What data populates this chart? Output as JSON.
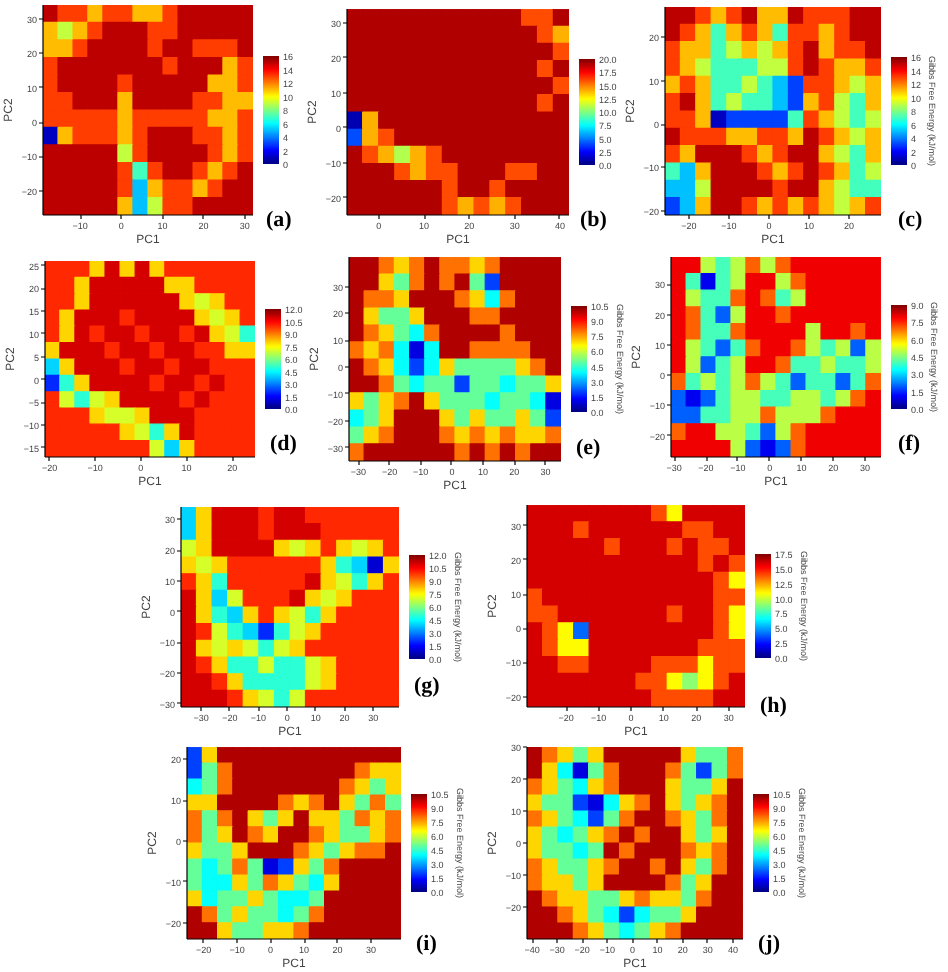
{
  "chart_data": [
    {
      "type": "heatmap",
      "xlabel": "PC1",
      "ylabel": "PC2",
      "annotations": [
        "(a)"
      ],
      "x": [
        -17.2,
        -13.5,
        -9.9,
        -6.3,
        -2.6,
        1.0,
        4.7,
        8.3,
        12.0,
        15.6,
        19.3,
        22.9,
        26.5,
        30.2
      ],
      "y": [
        31.5,
        26.4,
        21.3,
        16.2,
        11.1,
        6.0,
        1.0,
        -4.1,
        -9.2,
        -14.3,
        -19.4,
        -24.5
      ],
      "xlim": [
        -19,
        32
      ],
      "xticks": [
        -10,
        0,
        10,
        20,
        30
      ],
      "ylim": [
        -27,
        34
      ],
      "yticks": [
        -20,
        -10,
        0,
        10,
        20,
        30
      ],
      "clim": [
        0,
        16
      ],
      "cticks": [
        0,
        2,
        4,
        6,
        8,
        10,
        12,
        14,
        16
      ],
      "cells": [
        [
          15,
          13,
          13,
          11,
          13,
          13,
          11,
          11,
          13,
          15,
          15,
          15,
          15,
          15
        ],
        [
          11,
          9,
          11,
          13,
          15,
          15,
          15,
          13,
          13,
          15,
          15,
          15,
          15,
          15
        ],
        [
          11,
          11,
          13,
          15,
          15,
          15,
          15,
          13,
          15,
          15,
          13,
          13,
          13,
          15
        ],
        [
          13,
          15,
          15,
          15,
          15,
          15,
          15,
          15,
          13,
          15,
          15,
          15,
          11,
          13
        ],
        [
          13,
          15,
          15,
          15,
          15,
          13,
          15,
          15,
          15,
          15,
          15,
          11,
          11,
          13
        ],
        [
          13,
          13,
          15,
          15,
          15,
          11,
          15,
          15,
          15,
          15,
          13,
          13,
          11,
          11
        ],
        [
          13,
          13,
          13,
          13,
          13,
          11,
          13,
          13,
          13,
          13,
          13,
          11,
          11,
          13
        ],
        [
          1,
          11,
          13,
          13,
          13,
          11,
          13,
          15,
          15,
          15,
          13,
          13,
          11,
          13
        ],
        [
          15,
          15,
          15,
          15,
          15,
          9,
          13,
          15,
          15,
          15,
          15,
          13,
          11,
          13
        ],
        [
          15,
          15,
          15,
          15,
          15,
          13,
          7,
          13,
          15,
          15,
          13,
          11,
          13,
          15
        ],
        [
          15,
          15,
          15,
          15,
          15,
          13,
          5,
          11,
          13,
          13,
          11,
          13,
          15,
          15
        ],
        [
          15,
          15,
          15,
          15,
          15,
          11,
          5,
          9,
          13,
          13,
          15,
          15,
          15,
          15
        ]
      ]
    },
    {
      "type": "heatmap",
      "xlabel": "PC1",
      "ylabel": "PC2",
      "annotations": [
        "(b)"
      ],
      "x": [
        -5.3,
        -1.8,
        1.8,
        5.3,
        8.8,
        12.3,
        15.8,
        19.3,
        22.8,
        26.3,
        29.8,
        33.3,
        36.8,
        40.3
      ],
      "y": [
        31.5,
        26.6,
        21.7,
        16.8,
        11.9,
        7.0,
        2.0,
        -2.9,
        -7.8,
        -12.7,
        -17.6,
        -22.5
      ],
      "xlim": [
        -7,
        42
      ],
      "xticks": [
        0,
        10,
        20,
        30,
        40
      ],
      "ylim": [
        -25,
        34
      ],
      "yticks": [
        -20,
        -10,
        0,
        10,
        20,
        30
      ],
      "clim": [
        0,
        20
      ],
      "cticks": [
        {
          "value": 0,
          "label": "0.0"
        },
        2.5,
        {
          "value": 5,
          "label": "5.0"
        },
        7.5,
        {
          "value": 10,
          "label": "10.0"
        },
        12.5,
        {
          "value": 15,
          "label": "15.0"
        },
        17.5,
        {
          "value": 20,
          "label": "20.0"
        }
      ],
      "cells": [
        [
          19,
          19,
          19,
          19,
          19,
          19,
          19,
          19,
          19,
          19,
          19,
          16,
          16,
          19
        ],
        [
          19,
          19,
          19,
          19,
          19,
          19,
          19,
          19,
          19,
          19,
          19,
          19,
          16,
          14
        ],
        [
          19,
          19,
          19,
          19,
          19,
          19,
          19,
          19,
          19,
          19,
          19,
          19,
          19,
          16
        ],
        [
          19,
          19,
          19,
          19,
          19,
          19,
          19,
          19,
          19,
          19,
          19,
          19,
          16,
          19
        ],
        [
          19,
          19,
          19,
          19,
          19,
          19,
          19,
          19,
          19,
          19,
          19,
          19,
          19,
          16
        ],
        [
          19,
          19,
          19,
          19,
          19,
          19,
          19,
          19,
          19,
          19,
          19,
          19,
          16,
          19
        ],
        [
          1,
          14,
          19,
          19,
          19,
          19,
          19,
          19,
          19,
          19,
          19,
          19,
          19,
          19
        ],
        [
          4,
          14,
          16,
          19,
          19,
          19,
          19,
          19,
          19,
          19,
          19,
          19,
          19,
          19
        ],
        [
          19,
          16,
          14,
          11,
          14,
          16,
          19,
          19,
          19,
          19,
          19,
          19,
          19,
          19
        ],
        [
          19,
          19,
          19,
          16,
          14,
          16,
          16,
          19,
          19,
          19,
          16,
          16,
          19,
          19
        ],
        [
          19,
          19,
          19,
          19,
          19,
          19,
          16,
          19,
          19,
          16,
          19,
          19,
          19,
          19
        ],
        [
          19,
          19,
          19,
          19,
          19,
          19,
          16,
          14,
          16,
          14,
          16,
          19,
          19,
          19
        ]
      ]
    },
    {
      "type": "heatmap",
      "xlabel": "PC1",
      "ylabel": "PC2",
      "clabel": "Gibbs Free Energy (kJ/mol)",
      "annotations": [
        "(c)"
      ],
      "x": [
        -24.1,
        -20.2,
        -16.4,
        -12.5,
        -8.6,
        -4.8,
        -0.9,
        2.9,
        6.8,
        10.6,
        14.5,
        18.4,
        22.2,
        26.1
      ],
      "y": [
        25,
        21,
        17,
        13,
        9,
        5,
        1,
        -3,
        -7,
        -11,
        -15,
        -19
      ],
      "xlim": [
        -26,
        28
      ],
      "xticks": [
        -20,
        -10,
        0,
        10,
        20
      ],
      "ylim": [
        -21,
        27
      ],
      "yticks": [
        -20,
        -10,
        0,
        10,
        20
      ],
      "clim": [
        0,
        16
      ],
      "cticks": [
        0,
        2,
        4,
        6,
        8,
        10,
        12,
        14,
        16
      ],
      "cells": [
        [
          15,
          15,
          13,
          11,
          13,
          15,
          11,
          11,
          15,
          13,
          13,
          13,
          15,
          15
        ],
        [
          15,
          13,
          11,
          7,
          11,
          13,
          11,
          7,
          13,
          13,
          11,
          13,
          15,
          15
        ],
        [
          13,
          11,
          11,
          7,
          9,
          11,
          9,
          11,
          13,
          15,
          11,
          13,
          13,
          15
        ],
        [
          13,
          11,
          9,
          7,
          7,
          7,
          9,
          9,
          13,
          15,
          13,
          11,
          11,
          13
        ],
        [
          11,
          13,
          11,
          7,
          7,
          9,
          7,
          5,
          3,
          13,
          13,
          11,
          9,
          11
        ],
        [
          13,
          15,
          11,
          7,
          9,
          7,
          7,
          5,
          3,
          11,
          13,
          9,
          7,
          11
        ],
        [
          13,
          13,
          11,
          1,
          3,
          3,
          3,
          3,
          7,
          13,
          11,
          9,
          7,
          9
        ],
        [
          15,
          13,
          13,
          13,
          11,
          11,
          13,
          13,
          11,
          15,
          13,
          11,
          9,
          11
        ],
        [
          13,
          11,
          15,
          15,
          15,
          13,
          11,
          13,
          15,
          15,
          11,
          9,
          7,
          11
        ],
        [
          7,
          5,
          11,
          15,
          15,
          15,
          13,
          11,
          13,
          15,
          13,
          11,
          7,
          9
        ],
        [
          5,
          5,
          9,
          15,
          15,
          15,
          15,
          13,
          15,
          15,
          11,
          9,
          7,
          7
        ],
        [
          3,
          5,
          11,
          15,
          15,
          13,
          11,
          13,
          11,
          13,
          11,
          9,
          11,
          13
        ]
      ]
    },
    {
      "type": "heatmap",
      "xlabel": "PC1",
      "ylabel": "PC2",
      "annotations": [
        "(d)"
      ],
      "x": [
        -19.4,
        -16.1,
        -12.8,
        -9.5,
        -6.2,
        -2.9,
        0.4,
        3.6,
        6.9,
        10.2,
        13.5,
        16.8,
        20.1,
        23.4
      ],
      "y": [
        24.2,
        20.6,
        17.0,
        13.5,
        9.9,
        6.3,
        2.7,
        -0.9,
        -4.5,
        -8.0,
        -11.6,
        -15.2
      ],
      "xlim": [
        -21,
        25
      ],
      "xticks": [
        -20,
        -10,
        0,
        10,
        20
      ],
      "ylim": [
        -17,
        26
      ],
      "yticks": [
        -15,
        -10,
        -5,
        0,
        5,
        10,
        15,
        20,
        25
      ],
      "clim": [
        0,
        12
      ],
      "cticks": [
        {
          "value": 0,
          "label": "0.0"
        },
        1.5,
        {
          "value": 3,
          "label": "3.0"
        },
        4.5,
        {
          "value": 6,
          "label": "6.0"
        },
        7.5,
        {
          "value": 9,
          "label": "9.0"
        },
        10.5,
        {
          "value": 12,
          "label": "12.0"
        }
      ],
      "cells": [
        [
          10,
          10,
          10,
          8,
          11,
          8,
          11,
          8,
          10,
          10,
          10,
          10,
          10,
          10
        ],
        [
          10,
          10,
          8,
          11,
          11,
          11,
          11,
          11,
          8,
          8,
          10,
          10,
          10,
          10
        ],
        [
          10,
          10,
          8,
          11,
          11,
          11,
          11,
          11,
          11,
          8,
          7,
          8,
          10,
          10
        ],
        [
          10,
          8,
          11,
          11,
          11,
          10,
          11,
          11,
          11,
          11,
          8,
          7,
          8,
          10
        ],
        [
          10,
          8,
          11,
          10,
          11,
          11,
          10,
          11,
          11,
          10,
          11,
          8,
          7,
          5
        ],
        [
          8,
          11,
          11,
          11,
          10,
          11,
          11,
          10,
          11,
          11,
          10,
          10,
          8,
          8
        ],
        [
          4,
          8,
          11,
          11,
          11,
          10,
          11,
          11,
          10,
          11,
          11,
          10,
          10,
          10
        ],
        [
          2,
          5,
          8,
          11,
          11,
          11,
          11,
          10,
          11,
          11,
          10,
          11,
          10,
          10
        ],
        [
          10,
          7,
          5,
          7,
          8,
          11,
          11,
          11,
          11,
          10,
          11,
          10,
          10,
          10
        ],
        [
          10,
          10,
          10,
          8,
          7,
          7,
          8,
          11,
          11,
          11,
          10,
          10,
          10,
          10
        ],
        [
          10,
          10,
          10,
          10,
          10,
          8,
          7,
          5,
          8,
          11,
          10,
          10,
          10,
          10
        ],
        [
          10,
          10,
          10,
          10,
          10,
          10,
          10,
          7,
          4,
          8,
          10,
          10,
          10,
          10
        ]
      ]
    },
    {
      "type": "heatmap",
      "xlabel": "PC1",
      "ylabel": "PC2",
      "clabel": "Gibbs Free Energy (kJ/mol)",
      "annotations": [
        "(e)"
      ],
      "x": [
        -30.6,
        -25.7,
        -20.9,
        -16.0,
        -11.1,
        -6.3,
        -1.4,
        3.4,
        8.3,
        13.1,
        18.0,
        22.9,
        27.7,
        32.6
      ],
      "y": [
        37.8,
        31.5,
        25.2,
        18.8,
        12.5,
        6.2,
        -0.2,
        -6.5,
        -12.8,
        -19.2,
        -25.5,
        -31.8
      ],
      "xlim": [
        -33,
        35
      ],
      "xticks": [
        -30,
        -20,
        -10,
        0,
        10,
        20,
        30
      ],
      "ylim": [
        -35,
        41
      ],
      "yticks": [
        -30,
        -20,
        -10,
        0,
        10,
        20,
        30
      ],
      "clim": [
        0,
        10.5
      ],
      "cticks": [
        {
          "value": 0,
          "label": "0.0"
        },
        1.5,
        {
          "value": 3,
          "label": "3.0"
        },
        4.5,
        {
          "value": 6,
          "label": "6.0"
        },
        7.5,
        {
          "value": 9,
          "label": "9.0"
        },
        10.5
      ],
      "cells": [
        [
          10,
          10,
          8,
          7,
          8,
          10,
          8,
          8,
          7,
          8,
          10,
          10,
          10,
          10
        ],
        [
          10,
          10,
          7,
          5,
          8,
          10,
          8,
          10,
          5,
          2,
          10,
          10,
          10,
          10
        ],
        [
          10,
          8,
          8,
          7,
          10,
          10,
          10,
          8,
          7,
          4,
          8,
          10,
          10,
          10
        ],
        [
          10,
          7,
          5,
          5,
          7,
          10,
          10,
          10,
          8,
          8,
          10,
          10,
          10,
          10
        ],
        [
          10,
          8,
          7,
          5,
          4,
          8,
          10,
          10,
          10,
          10,
          8,
          10,
          10,
          10
        ],
        [
          8,
          7,
          8,
          4,
          1,
          4,
          10,
          10,
          8,
          8,
          8,
          8,
          10,
          10
        ],
        [
          10,
          8,
          7,
          4,
          2,
          4,
          7,
          5,
          5,
          5,
          5,
          7,
          8,
          10
        ],
        [
          10,
          10,
          8,
          5,
          4,
          5,
          5,
          2,
          5,
          5,
          4,
          5,
          5,
          7
        ],
        [
          7,
          5,
          7,
          8,
          10,
          7,
          5,
          5,
          5,
          4,
          5,
          5,
          4,
          1
        ],
        [
          4,
          5,
          7,
          10,
          10,
          10,
          7,
          5,
          7,
          5,
          5,
          7,
          5,
          2
        ],
        [
          5,
          7,
          8,
          10,
          10,
          10,
          8,
          7,
          8,
          7,
          8,
          7,
          7,
          8
        ],
        [
          8,
          10,
          10,
          10,
          10,
          10,
          10,
          8,
          10,
          8,
          10,
          8,
          10,
          10
        ]
      ]
    },
    {
      "type": "heatmap",
      "xlabel": "PC1",
      "ylabel": "PC2",
      "clabel": "Gibbs Free Energy (kJ/mol)",
      "annotations": [
        "(f)"
      ],
      "x": [
        -28.6,
        -23.9,
        -19.2,
        -14.5,
        -9.8,
        -5.1,
        -0.4,
        4.4,
        9.1,
        13.8,
        18.5,
        23.2,
        27.9,
        32.6
      ],
      "y": [
        36.3,
        30.8,
        25.3,
        19.8,
        14.3,
        8.8,
        3.3,
        -2.3,
        -7.8,
        -13.3,
        -18.8,
        -24.3
      ],
      "xlim": [
        -31,
        35
      ],
      "xticks": [
        -30,
        -20,
        -10,
        0,
        10,
        20,
        30
      ],
      "ylim": [
        -27,
        39
      ],
      "yticks": [
        -20,
        -10,
        0,
        10,
        20,
        30
      ],
      "clim": [
        0,
        9
      ],
      "cticks": [
        {
          "value": 0,
          "label": "0.0"
        },
        1.5,
        {
          "value": 3,
          "label": "3.0"
        },
        4.5,
        {
          "value": 6,
          "label": "6.0"
        },
        7.5,
        {
          "value": 9,
          "label": "9.0"
        }
      ],
      "cells": [
        [
          8,
          8,
          5,
          4,
          5,
          7,
          5,
          7,
          8,
          8,
          8,
          8,
          8,
          8
        ],
        [
          8,
          4,
          1,
          4,
          5,
          8,
          8,
          5,
          7,
          8,
          8,
          8,
          8,
          8
        ],
        [
          8,
          5,
          4,
          4,
          7,
          8,
          7,
          4,
          5,
          8,
          8,
          8,
          8,
          8
        ],
        [
          8,
          7,
          4,
          2,
          5,
          8,
          8,
          7,
          8,
          8,
          8,
          8,
          8,
          8
        ],
        [
          8,
          7,
          4,
          4,
          7,
          8,
          8,
          8,
          8,
          5,
          8,
          8,
          7,
          8
        ],
        [
          8,
          5,
          4,
          2,
          4,
          7,
          8,
          8,
          7,
          5,
          4,
          5,
          2,
          5
        ],
        [
          8,
          5,
          2,
          4,
          5,
          8,
          8,
          7,
          4,
          4,
          5,
          4,
          4,
          5
        ],
        [
          7,
          4,
          5,
          4,
          5,
          7,
          5,
          4,
          2,
          4,
          4,
          2,
          4,
          7
        ],
        [
          2,
          1,
          2,
          4,
          5,
          5,
          4,
          4,
          5,
          5,
          4,
          5,
          7,
          8
        ],
        [
          2,
          2,
          4,
          4,
          5,
          5,
          7,
          5,
          5,
          5,
          7,
          8,
          8,
          8
        ],
        [
          7,
          8,
          8,
          5,
          5,
          4,
          2,
          5,
          7,
          8,
          8,
          8,
          8,
          8
        ],
        [
          8,
          8,
          8,
          8,
          5,
          2,
          1,
          2,
          7,
          8,
          8,
          8,
          8,
          8
        ]
      ]
    },
    {
      "type": "heatmap",
      "xlabel": "PC1",
      "ylabel": "PC2",
      "clabel": "Gibbs Free Energy (kJ/mol)",
      "annotations": [
        "(g)"
      ],
      "x": [
        -34.3,
        -28.9,
        -23.4,
        -18.0,
        -12.6,
        -7.1,
        -1.7,
        3.7,
        9.1,
        14.6,
        20.0,
        25.4,
        30.9,
        36.3
      ],
      "y": [
        31.3,
        25.9,
        20.5,
        15.0,
        9.6,
        4.2,
        -1.2,
        -6.6,
        -12.0,
        -17.5,
        -22.9,
        -28.3
      ],
      "xlim": [
        -37,
        39
      ],
      "xticks": [
        -30,
        -20,
        -10,
        0,
        10,
        20,
        30
      ],
      "ylim": [
        -31,
        34
      ],
      "yticks": [
        -30,
        -20,
        -10,
        0,
        10,
        20,
        30
      ],
      "clim": [
        0,
        12
      ],
      "cticks": [
        {
          "value": 0,
          "label": "0.0"
        },
        1.5,
        {
          "value": 3,
          "label": "3.0"
        },
        4.5,
        {
          "value": 6,
          "label": "6.0"
        },
        7.5,
        {
          "value": 9,
          "label": "9.0"
        },
        10.5,
        {
          "value": 12,
          "label": "12.0"
        }
      ],
      "cells": [
        [
          4,
          8,
          11,
          11,
          11,
          10,
          11,
          11,
          10,
          10,
          10,
          10,
          10,
          10
        ],
        [
          4,
          8,
          11,
          11,
          11,
          10,
          11,
          11,
          11,
          10,
          10,
          10,
          10,
          10
        ],
        [
          7,
          8,
          11,
          11,
          11,
          11,
          8,
          7,
          8,
          10,
          8,
          7,
          8,
          10
        ],
        [
          8,
          7,
          8,
          10,
          10,
          10,
          10,
          10,
          10,
          8,
          5,
          4,
          1,
          8
        ],
        [
          10,
          8,
          5,
          10,
          10,
          10,
          10,
          10,
          11,
          8,
          7,
          5,
          8,
          10
        ],
        [
          11,
          8,
          4,
          7,
          10,
          10,
          10,
          11,
          8,
          7,
          8,
          10,
          10,
          10
        ],
        [
          11,
          8,
          5,
          4,
          8,
          10,
          8,
          7,
          5,
          8,
          10,
          10,
          10,
          10
        ],
        [
          11,
          10,
          7,
          5,
          4,
          2,
          5,
          7,
          8,
          10,
          10,
          10,
          10,
          10
        ],
        [
          11,
          8,
          7,
          8,
          7,
          5,
          7,
          8,
          10,
          10,
          10,
          10,
          10,
          10
        ],
        [
          11,
          10,
          8,
          5,
          5,
          7,
          5,
          5,
          7,
          8,
          10,
          10,
          10,
          10
        ],
        [
          11,
          11,
          10,
          8,
          5,
          5,
          5,
          5,
          7,
          8,
          10,
          10,
          10,
          10
        ],
        [
          11,
          11,
          11,
          10,
          8,
          7,
          5,
          7,
          10,
          10,
          10,
          10,
          10,
          10
        ]
      ]
    },
    {
      "type": "heatmap",
      "xlabel": "PC1",
      "ylabel": "PC2",
      "clabel": "Gibbs Free Energy (kJ/mol)",
      "annotations": [
        "(h)"
      ],
      "x": [
        -29.6,
        -24.8,
        -20.0,
        -15.3,
        -10.5,
        -5.7,
        -0.9,
        3.9,
        8.7,
        13.5,
        18.3,
        23.0,
        27.8,
        32.6
      ],
      "y": [
        33.5,
        28.6,
        23.7,
        18.8,
        13.9,
        9.0,
        4.0,
        -0.9,
        -5.8,
        -10.7,
        -15.6,
        -20.5
      ],
      "xlim": [
        -32,
        35
      ],
      "xticks": [
        -20,
        -10,
        0,
        10,
        20,
        30
      ],
      "ylim": [
        -23,
        36
      ],
      "yticks": [
        -20,
        -10,
        0,
        10,
        20,
        30
      ],
      "clim": [
        0,
        17.5
      ],
      "cticks": [
        {
          "value": 0,
          "label": "0.0"
        },
        2.5,
        {
          "value": 5,
          "label": "5.0"
        },
        7.5,
        {
          "value": 10,
          "label": "10.0"
        },
        12.5,
        {
          "value": 15,
          "label": "15.0"
        },
        17.5
      ],
      "cells": [
        [
          16,
          16,
          16,
          16,
          16,
          16,
          16,
          16,
          14,
          11,
          16,
          16,
          16,
          16
        ],
        [
          16,
          16,
          16,
          14,
          16,
          16,
          16,
          16,
          16,
          16,
          14,
          14,
          16,
          16
        ],
        [
          16,
          16,
          16,
          16,
          16,
          14,
          16,
          16,
          16,
          14,
          16,
          14,
          14,
          16
        ],
        [
          16,
          16,
          16,
          16,
          16,
          16,
          16,
          16,
          16,
          16,
          16,
          14,
          16,
          14
        ],
        [
          16,
          16,
          16,
          16,
          16,
          16,
          16,
          16,
          16,
          16,
          16,
          16,
          14,
          11
        ],
        [
          14,
          16,
          16,
          16,
          16,
          16,
          16,
          16,
          16,
          16,
          16,
          16,
          14,
          14
        ],
        [
          14,
          14,
          16,
          16,
          16,
          16,
          16,
          16,
          16,
          14,
          16,
          16,
          14,
          11
        ],
        [
          16,
          14,
          11,
          4,
          16,
          16,
          16,
          16,
          16,
          16,
          16,
          16,
          14,
          11
        ],
        [
          16,
          14,
          11,
          11,
          16,
          16,
          16,
          16,
          16,
          16,
          16,
          14,
          14,
          14
        ],
        [
          16,
          16,
          14,
          14,
          16,
          16,
          16,
          16,
          14,
          14,
          14,
          11,
          14,
          14
        ],
        [
          16,
          16,
          16,
          16,
          16,
          16,
          16,
          14,
          14,
          11,
          9,
          11,
          14,
          16
        ],
        [
          16,
          16,
          16,
          16,
          16,
          16,
          16,
          16,
          14,
          14,
          14,
          14,
          16,
          16
        ]
      ]
    },
    {
      "type": "heatmap",
      "xlabel": "PC1",
      "ylabel": "PC2",
      "clabel": "Gibbs Free Energy (kJ/mol)",
      "annotations": [
        "(i)"
      ],
      "x": [
        -22.7,
        -18.1,
        -13.6,
        -9.0,
        -4.4,
        0.1,
        4.7,
        9.3,
        13.9,
        18.4,
        23.0,
        27.6,
        32.1,
        36.7
      ],
      "y": [
        21.0,
        17.1,
        13.2,
        9.3,
        5.4,
        1.5,
        -2.5,
        -6.4,
        -10.3,
        -14.2,
        -18.1,
        -22.0
      ],
      "xlim": [
        -25,
        39
      ],
      "xticks": [
        -20,
        -10,
        0,
        10,
        20,
        30
      ],
      "ylim": [
        -24,
        23
      ],
      "yticks": [
        -20,
        -10,
        0,
        10,
        20
      ],
      "clim": [
        0,
        10.5
      ],
      "cticks": [
        {
          "value": 0,
          "label": "0.0"
        },
        1.5,
        {
          "value": 3,
          "label": "3.0"
        },
        4.5,
        {
          "value": 6,
          "label": "6.0"
        },
        7.5,
        {
          "value": 9,
          "label": "9.0"
        },
        10.5
      ],
      "cells": [
        [
          2,
          7,
          10,
          10,
          10,
          10,
          10,
          10,
          10,
          10,
          10,
          10,
          10,
          10
        ],
        [
          2,
          5,
          8,
          10,
          10,
          10,
          10,
          10,
          10,
          10,
          10,
          8,
          7,
          7
        ],
        [
          4,
          5,
          8,
          10,
          10,
          10,
          10,
          10,
          10,
          10,
          8,
          7,
          5,
          7
        ],
        [
          7,
          7,
          10,
          10,
          10,
          10,
          8,
          7,
          8,
          10,
          7,
          5,
          8,
          5
        ],
        [
          8,
          5,
          8,
          10,
          7,
          5,
          7,
          10,
          7,
          7,
          5,
          8,
          7,
          8
        ],
        [
          8,
          5,
          7,
          10,
          8,
          7,
          10,
          10,
          8,
          7,
          5,
          5,
          7,
          8
        ],
        [
          7,
          5,
          5,
          7,
          10,
          10,
          10,
          8,
          7,
          5,
          7,
          8,
          8,
          10
        ],
        [
          5,
          4,
          5,
          8,
          5,
          1,
          2,
          7,
          5,
          8,
          10,
          10,
          10,
          10
        ],
        [
          5,
          4,
          4,
          7,
          5,
          8,
          7,
          5,
          4,
          7,
          10,
          10,
          10,
          10
        ],
        [
          7,
          4,
          5,
          5,
          7,
          5,
          4,
          4,
          5,
          10,
          10,
          10,
          10,
          10
        ],
        [
          10,
          8,
          5,
          7,
          5,
          5,
          4,
          5,
          8,
          10,
          10,
          10,
          10,
          10
        ],
        [
          10,
          10,
          7,
          5,
          5,
          7,
          7,
          8,
          10,
          10,
          10,
          10,
          10,
          10
        ]
      ]
    },
    {
      "type": "heatmap",
      "xlabel": "PC1",
      "ylabel": "PC2",
      "clabel": "Gibbs Free Energy (kJ/mol)",
      "annotations": [
        "(j)"
      ],
      "x": [
        -38.9,
        -32.8,
        -26.6,
        -20.5,
        -14.4,
        -8.2,
        -2.1,
        4.1,
        10.2,
        16.4,
        22.5,
        28.6,
        34.8,
        40.9
      ],
      "y": [
        27.5,
        22.5,
        17.5,
        12.5,
        7.5,
        2.5,
        -2.5,
        -7.5,
        -12.5,
        -17.5,
        -22.5,
        -27.5
      ],
      "xlim": [
        -42,
        44
      ],
      "xticks": [
        -40,
        -30,
        -20,
        -10,
        0,
        10,
        20,
        30,
        40
      ],
      "ylim": [
        -30,
        30
      ],
      "yticks": [
        -20,
        -10,
        0,
        10,
        20,
        30
      ],
      "clim": [
        0,
        10.5
      ],
      "cticks": [
        {
          "value": 0,
          "label": "0.0"
        },
        1.5,
        {
          "value": 3,
          "label": "3.0"
        },
        4.5,
        {
          "value": 6,
          "label": "6.0"
        },
        7.5,
        {
          "value": 9,
          "label": "9.0"
        },
        10.5
      ],
      "cells": [
        [
          10,
          8,
          7,
          5,
          7,
          10,
          10,
          10,
          10,
          10,
          7,
          5,
          5,
          8
        ],
        [
          10,
          7,
          4,
          1,
          5,
          8,
          10,
          10,
          10,
          8,
          5,
          2,
          5,
          8
        ],
        [
          8,
          7,
          5,
          4,
          7,
          8,
          10,
          10,
          10,
          7,
          5,
          5,
          7,
          10
        ],
        [
          7,
          5,
          5,
          2,
          1,
          4,
          7,
          8,
          10,
          7,
          5,
          7,
          8,
          10
        ],
        [
          8,
          7,
          5,
          4,
          2,
          5,
          8,
          10,
          10,
          8,
          7,
          5,
          8,
          10
        ],
        [
          7,
          5,
          4,
          5,
          7,
          8,
          10,
          8,
          10,
          10,
          7,
          5,
          7,
          10
        ],
        [
          7,
          5,
          5,
          4,
          5,
          10,
          8,
          10,
          10,
          10,
          8,
          7,
          8,
          10
        ],
        [
          8,
          7,
          5,
          5,
          7,
          8,
          10,
          10,
          8,
          10,
          7,
          5,
          8,
          10
        ],
        [
          8,
          7,
          7,
          5,
          7,
          10,
          10,
          10,
          10,
          8,
          5,
          7,
          10,
          10
        ],
        [
          10,
          8,
          7,
          7,
          5,
          5,
          7,
          8,
          7,
          7,
          5,
          8,
          10,
          10
        ],
        [
          10,
          10,
          8,
          7,
          5,
          4,
          2,
          4,
          5,
          5,
          7,
          10,
          10,
          10
        ],
        [
          10,
          10,
          10,
          8,
          7,
          5,
          4,
          5,
          7,
          8,
          10,
          10,
          10,
          10
        ]
      ]
    }
  ]
}
